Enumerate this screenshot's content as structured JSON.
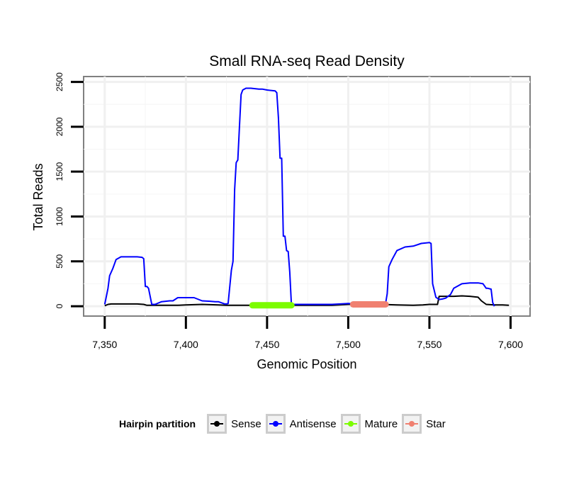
{
  "chart_data": {
    "type": "line",
    "title": "Small RNA-seq Read Density",
    "xlabel": "Genomic Position",
    "ylabel": "Total Reads",
    "xlim": [
      7337,
      7612
    ],
    "ylim": [
      -110,
      2560
    ],
    "x_ticks": [
      7350,
      7400,
      7450,
      7500,
      7550,
      7600
    ],
    "x_tick_labels": [
      "7,350",
      "7,400",
      "7,450",
      "7,500",
      "7,550",
      "7,600"
    ],
    "y_ticks": [
      0,
      500,
      1000,
      1500,
      2000,
      2500
    ],
    "y_tick_labels": [
      "0",
      "500",
      "1000",
      "1500",
      "2000",
      "2500"
    ],
    "grid": true,
    "legend": {
      "title": "Hairpin partition",
      "position": "bottom",
      "items": [
        {
          "label": "Sense",
          "color": "#000000"
        },
        {
          "label": "Antisense",
          "color": "#0000ff"
        },
        {
          "label": "Mature",
          "color": "#7cfc00"
        },
        {
          "label": "Star",
          "color": "#f08070"
        }
      ]
    },
    "series": [
      {
        "name": "Sense",
        "color": "#000000",
        "width": 2,
        "x": [
          7350,
          7352,
          7354,
          7360,
          7370,
          7374,
          7376,
          7380,
          7390,
          7395,
          7400,
          7410,
          7420,
          7425,
          7430,
          7440,
          7450,
          7460,
          7470,
          7480,
          7490,
          7500,
          7510,
          7520,
          7530,
          7540,
          7546,
          7550,
          7555,
          7556,
          7560,
          7565,
          7570,
          7575,
          7580,
          7582,
          7585,
          7590,
          7595,
          7599
        ],
        "values": [
          5,
          20,
          25,
          25,
          25,
          20,
          10,
          10,
          10,
          10,
          15,
          20,
          15,
          10,
          10,
          10,
          10,
          10,
          10,
          10,
          10,
          20,
          20,
          20,
          15,
          10,
          15,
          20,
          20,
          110,
          110,
          110,
          115,
          110,
          100,
          60,
          20,
          15,
          15,
          10
        ]
      },
      {
        "name": "Antisense",
        "color": "#0000ff",
        "width": 2,
        "x": [
          7350,
          7352,
          7353,
          7355,
          7357,
          7360,
          7365,
          7370,
          7373,
          7374,
          7375,
          7376,
          7377,
          7379,
          7381,
          7385,
          7390,
          7392,
          7395,
          7400,
          7402,
          7405,
          7410,
          7415,
          7418,
          7420,
          7424,
          7425,
          7426,
          7428,
          7429,
          7430,
          7431,
          7432,
          7433,
          7434,
          7435,
          7437,
          7440,
          7445,
          7447,
          7450,
          7455,
          7456,
          7457,
          7458,
          7459,
          7460,
          7461,
          7462,
          7463,
          7464,
          7465,
          7470,
          7480,
          7490,
          7495,
          7500,
          7505,
          7510,
          7520,
          7523,
          7524,
          7525,
          7527,
          7530,
          7535,
          7540,
          7545,
          7550,
          7551,
          7552,
          7554,
          7556,
          7558,
          7560,
          7563,
          7565,
          7570,
          7575,
          7580,
          7583,
          7585,
          7586,
          7588,
          7589,
          7590
        ],
        "values": [
          20,
          200,
          340,
          420,
          520,
          550,
          550,
          550,
          545,
          530,
          220,
          220,
          200,
          20,
          20,
          50,
          60,
          60,
          95,
          95,
          95,
          95,
          60,
          55,
          50,
          50,
          25,
          25,
          30,
          400,
          500,
          1300,
          1600,
          1630,
          2000,
          2360,
          2410,
          2430,
          2430,
          2420,
          2420,
          2410,
          2400,
          2380,
          2100,
          1650,
          1650,
          780,
          780,
          620,
          610,
          380,
          20,
          20,
          20,
          20,
          25,
          30,
          25,
          25,
          30,
          30,
          140,
          440,
          520,
          620,
          660,
          670,
          700,
          710,
          700,
          250,
          100,
          75,
          80,
          90,
          130,
          200,
          250,
          260,
          260,
          250,
          200,
          200,
          190,
          40,
          0
        ]
      },
      {
        "name": "Mature",
        "color": "#7cfc00",
        "width": 9,
        "x": [
          7441,
          7465
        ],
        "values": [
          10,
          10
        ]
      },
      {
        "name": "Star",
        "color": "#f08070",
        "width": 9,
        "x": [
          7503,
          7523
        ],
        "values": [
          20,
          20
        ]
      }
    ]
  }
}
